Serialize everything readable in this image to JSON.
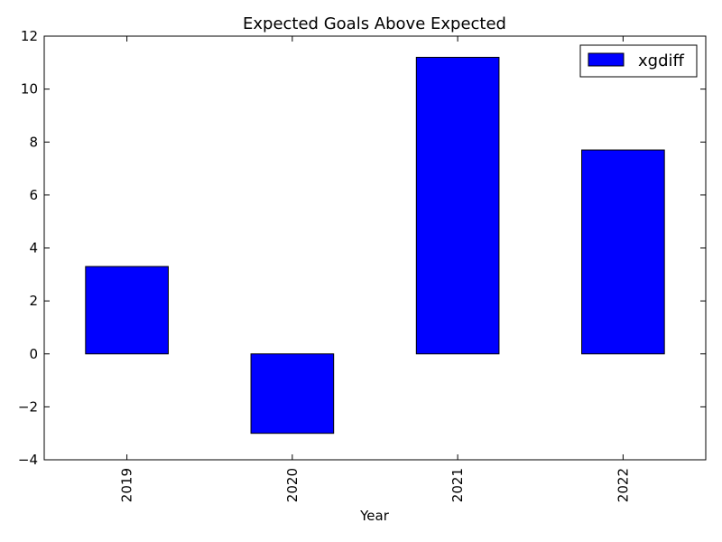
{
  "chart_data": {
    "type": "bar",
    "title": "Expected Goals Above Expected",
    "xlabel": "Year",
    "ylabel": "",
    "categories": [
      "2019",
      "2020",
      "2021",
      "2022"
    ],
    "series": [
      {
        "name": "xgdiff",
        "color": "#0000ff",
        "values": [
          3.3,
          -3.0,
          11.2,
          7.7
        ]
      }
    ],
    "ylim": [
      -4,
      12
    ],
    "yticks": [
      -4,
      -2,
      0,
      2,
      4,
      6,
      8,
      10,
      12
    ],
    "ytick_labels": [
      "−4",
      "−2",
      "0",
      "2",
      "4",
      "6",
      "8",
      "10",
      "12"
    ],
    "grid": false,
    "legend_position": "top-right",
    "xtick_rotation": "vertical"
  }
}
